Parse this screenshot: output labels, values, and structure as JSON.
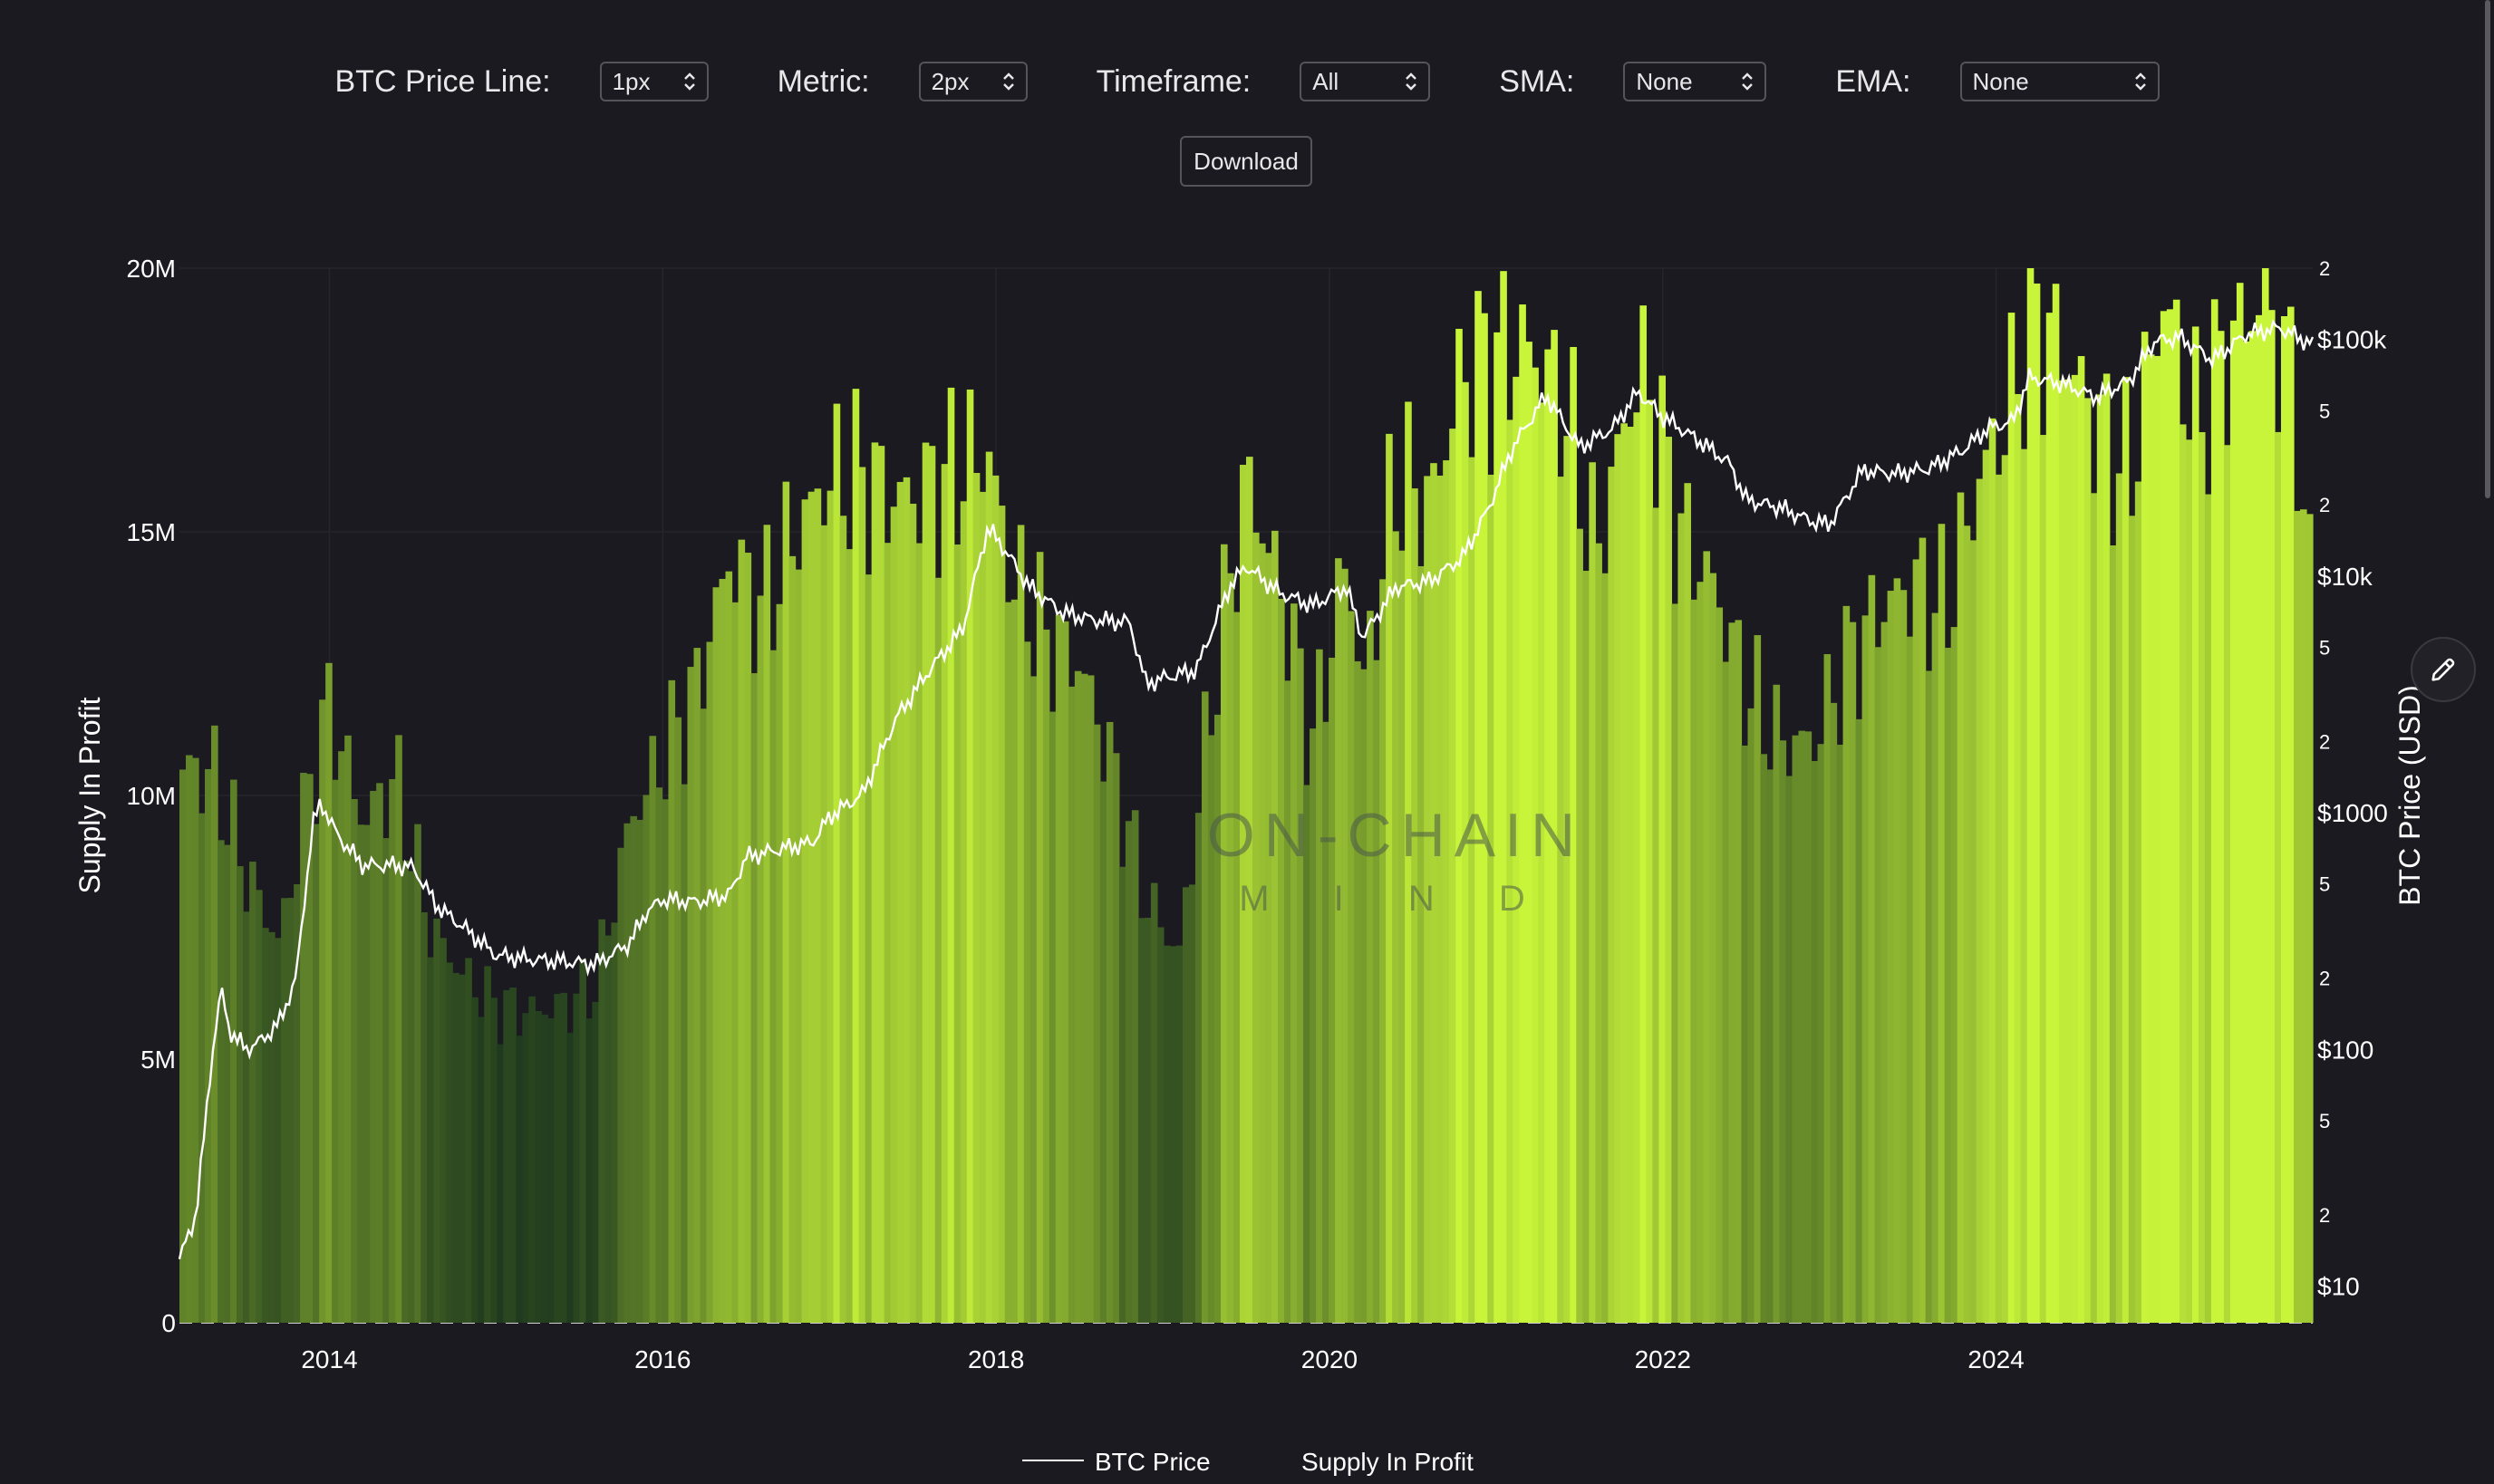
{
  "controls": {
    "price_line": {
      "label": "BTC Price Line:",
      "value": "1px"
    },
    "metric": {
      "label": "Metric:",
      "value": "2px"
    },
    "timeframe": {
      "label": "Timeframe:",
      "value": "All"
    },
    "sma": {
      "label": "SMA:",
      "value": "None"
    },
    "ema": {
      "label": "EMA:",
      "value": "None"
    },
    "download_label": "Download"
  },
  "watermark": {
    "line1": "ON-CHAIN",
    "line2": "M I N D"
  },
  "icons": {
    "edit": "pencil-icon",
    "select": "chevron-updown-icon"
  },
  "colors": {
    "background": "#1b1a21",
    "bar_low": "#1f3a1e",
    "bar_high": "#c8f53a",
    "price_line": "#ffffff"
  },
  "chart_data": {
    "type": "area",
    "y_left_label": "Supply In Profit",
    "y_right_label": "BTC Price (USD)",
    "y_left_ticks": [
      "0",
      "5M",
      "10M",
      "15M",
      "20M"
    ],
    "y_left_range": [
      0,
      20000000
    ],
    "y_right_scale": "log",
    "y_right_range": [
      7,
      200000
    ],
    "y_right_major_ticks": [
      {
        "value": 10,
        "label": "$10"
      },
      {
        "value": 100,
        "label": "$100"
      },
      {
        "value": 1000,
        "label": "$1000"
      },
      {
        "value": 10000,
        "label": "$10k"
      },
      {
        "value": 100000,
        "label": "$100k"
      }
    ],
    "y_right_minor_ticks": [
      {
        "value": 20,
        "label": "2"
      },
      {
        "value": 50,
        "label": "5"
      },
      {
        "value": 200,
        "label": "2"
      },
      {
        "value": 500,
        "label": "5"
      },
      {
        "value": 2000,
        "label": "2"
      },
      {
        "value": 5000,
        "label": "5"
      },
      {
        "value": 20000,
        "label": "2"
      },
      {
        "value": 50000,
        "label": "5"
      },
      {
        "value": 200000,
        "label": "2"
      }
    ],
    "x_ticks": [
      "2014",
      "2016",
      "2018",
      "2020",
      "2022",
      "2024"
    ],
    "x_range": [
      2013.1,
      2025.9
    ],
    "legend": [
      "BTC Price",
      "Supply In Profit"
    ],
    "series": [
      {
        "name": "Supply In Profit",
        "x": [
          2013.1,
          2013.3,
          2013.5,
          2013.7,
          2013.9,
          2014.0,
          2014.2,
          2014.4,
          2014.6,
          2014.8,
          2015.0,
          2015.2,
          2015.4,
          2015.6,
          2015.8,
          2016.0,
          2016.2,
          2016.4,
          2016.6,
          2016.8,
          2017.0,
          2017.2,
          2017.4,
          2017.6,
          2017.8,
          2017.95,
          2018.1,
          2018.3,
          2018.5,
          2018.7,
          2018.9,
          2019.1,
          2019.3,
          2019.5,
          2019.7,
          2019.9,
          2020.1,
          2020.2,
          2020.4,
          2020.6,
          2020.8,
          2021.0,
          2021.2,
          2021.4,
          2021.6,
          2021.8,
          2021.9,
          2022.1,
          2022.3,
          2022.5,
          2022.7,
          2022.9,
          2023.1,
          2023.3,
          2023.5,
          2023.7,
          2023.9,
          2024.1,
          2024.2,
          2024.4,
          2024.6,
          2024.8,
          2025.0,
          2025.2,
          2025.4,
          2025.6,
          2025.8,
          2025.9
        ],
        "values": [
          10500000,
          10400000,
          8500000,
          7200000,
          10500000,
          11700000,
          9500000,
          10300000,
          7500000,
          6600000,
          6000000,
          5900000,
          6000000,
          6400000,
          9500000,
          10700000,
          12000000,
          14500000,
          13500000,
          15000000,
          16000000,
          16000000,
          15600000,
          15800000,
          16200000,
          16500000,
          14000000,
          13000000,
          12500000,
          10500000,
          8000000,
          7000000,
          12000000,
          16000000,
          14000000,
          11000000,
          14500000,
          12000000,
          16000000,
          15500000,
          18000000,
          18300000,
          18500000,
          17500000,
          14500000,
          17500000,
          18000000,
          15000000,
          14000000,
          12000000,
          11000000,
          11000000,
          12500000,
          13500000,
          14000000,
          13500000,
          16000000,
          17500000,
          19000000,
          18500000,
          17000000,
          16000000,
          19500000,
          17000000,
          18500000,
          19500000,
          17500000,
          13000000
        ]
      },
      {
        "name": "BTC Price",
        "x": [
          2013.1,
          2013.2,
          2013.3,
          2013.35,
          2013.4,
          2013.5,
          2013.6,
          2013.7,
          2013.8,
          2013.9,
          2013.95,
          2014.05,
          2014.2,
          2014.35,
          2014.5,
          2014.65,
          2014.8,
          2015.0,
          2015.2,
          2015.4,
          2015.6,
          2015.8,
          2015.9,
          2016.0,
          2016.2,
          2016.4,
          2016.5,
          2016.7,
          2016.9,
          2017.0,
          2017.2,
          2017.4,
          2017.6,
          2017.8,
          2017.95,
          2018.05,
          2018.2,
          2018.4,
          2018.6,
          2018.8,
          2018.9,
          2019.0,
          2019.2,
          2019.4,
          2019.5,
          2019.7,
          2019.9,
          2020.1,
          2020.2,
          2020.4,
          2020.6,
          2020.8,
          2020.95,
          2021.1,
          2021.3,
          2021.5,
          2021.7,
          2021.85,
          2022.0,
          2022.2,
          2022.4,
          2022.5,
          2022.7,
          2022.9,
          2023.0,
          2023.2,
          2023.4,
          2023.6,
          2023.8,
          2023.95,
          2024.1,
          2024.2,
          2024.4,
          2024.6,
          2024.8,
          2024.95,
          2025.1,
          2025.3,
          2025.5,
          2025.7,
          2025.9
        ],
        "values": [
          13,
          20,
          100,
          180,
          120,
          100,
          110,
          130,
          200,
          900,
          1100,
          800,
          600,
          600,
          590,
          400,
          330,
          250,
          240,
          235,
          230,
          280,
          380,
          430,
          420,
          450,
          650,
          700,
          750,
          960,
          1200,
          2500,
          4000,
          6000,
          16000,
          13000,
          9000,
          7000,
          6500,
          6400,
          3500,
          3700,
          4000,
          9000,
          11000,
          8500,
          7500,
          9000,
          5500,
          9000,
          9500,
          12000,
          19000,
          35000,
          58000,
          35000,
          42000,
          60000,
          47000,
          38000,
          30000,
          21000,
          19500,
          17000,
          16500,
          28000,
          27000,
          28500,
          34000,
          42000,
          45000,
          69000,
          65000,
          57000,
          67000,
          98000,
          102000,
          82000,
          105000,
          112000,
          95000
        ]
      }
    ]
  }
}
